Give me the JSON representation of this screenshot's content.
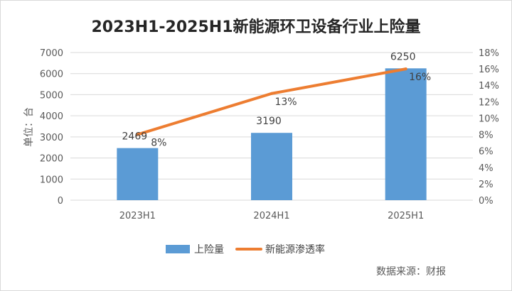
{
  "chart_data": {
    "type": "bar",
    "title": "2023H1-2025H1新能源环卫设备行业上险量",
    "ylabel": "单位：台",
    "y2label": "",
    "categories": [
      "2023H1",
      "2024H1",
      "2025H1"
    ],
    "series": [
      {
        "name": "上险量",
        "type": "bar",
        "axis": "left",
        "values": [
          2469,
          3190,
          6250
        ],
        "data_labels": [
          "2469",
          "3190",
          "6250"
        ],
        "color": "#5b9bd5"
      },
      {
        "name": "新能源渗透率",
        "type": "line",
        "axis": "right",
        "values": [
          8,
          13,
          16
        ],
        "data_labels": [
          "8%",
          "13%",
          "16%"
        ],
        "color": "#ed7d31"
      }
    ],
    "ylim": [
      0,
      7000
    ],
    "yticks": [
      "0",
      "1000",
      "2000",
      "3000",
      "4000",
      "5000",
      "6000",
      "7000"
    ],
    "y2lim": [
      0,
      18
    ],
    "y2ticks": [
      "0%",
      "2%",
      "4%",
      "6%",
      "8%",
      "10%",
      "12%",
      "14%",
      "16%",
      "18%"
    ],
    "grid": true,
    "legend_position": "bottom",
    "source": "数据来源：财报"
  }
}
